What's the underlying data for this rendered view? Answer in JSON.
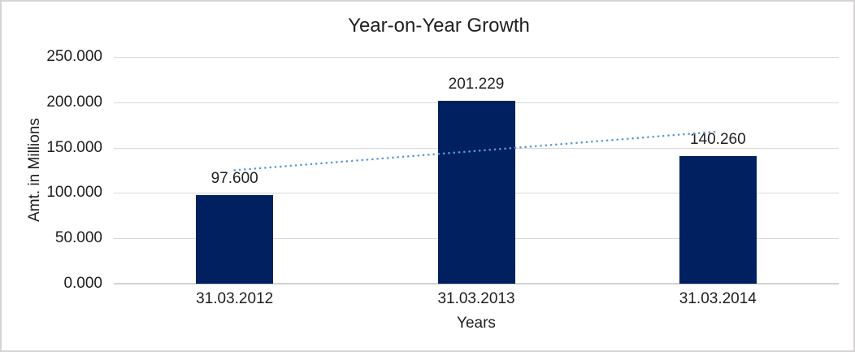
{
  "chart_data": {
    "type": "bar",
    "title": "Year-on-Year Growth",
    "xlabel": "Years",
    "ylabel": "Amt. in Millions",
    "categories": [
      "31.03.2012",
      "31.03.2013",
      "31.03.2014"
    ],
    "values": [
      97.6,
      201.229,
      140.26
    ],
    "data_labels": [
      "97.600",
      "201.229",
      "140.260"
    ],
    "ytick_labels": [
      "0.000",
      "50.000",
      "100.000",
      "150.000",
      "200.000",
      "250.000"
    ],
    "ylim": [
      0,
      250
    ],
    "grid": true,
    "legend": "none",
    "trendline": {
      "type": "linear",
      "style": "dotted"
    },
    "colors": {
      "bar": "#002060",
      "trendline": "#5b9bd5",
      "gridline": "#d9d9d9",
      "axis_line": "#d2d2d2",
      "text": "#1f1f1f",
      "frame_border": "#d5d3d3"
    }
  }
}
